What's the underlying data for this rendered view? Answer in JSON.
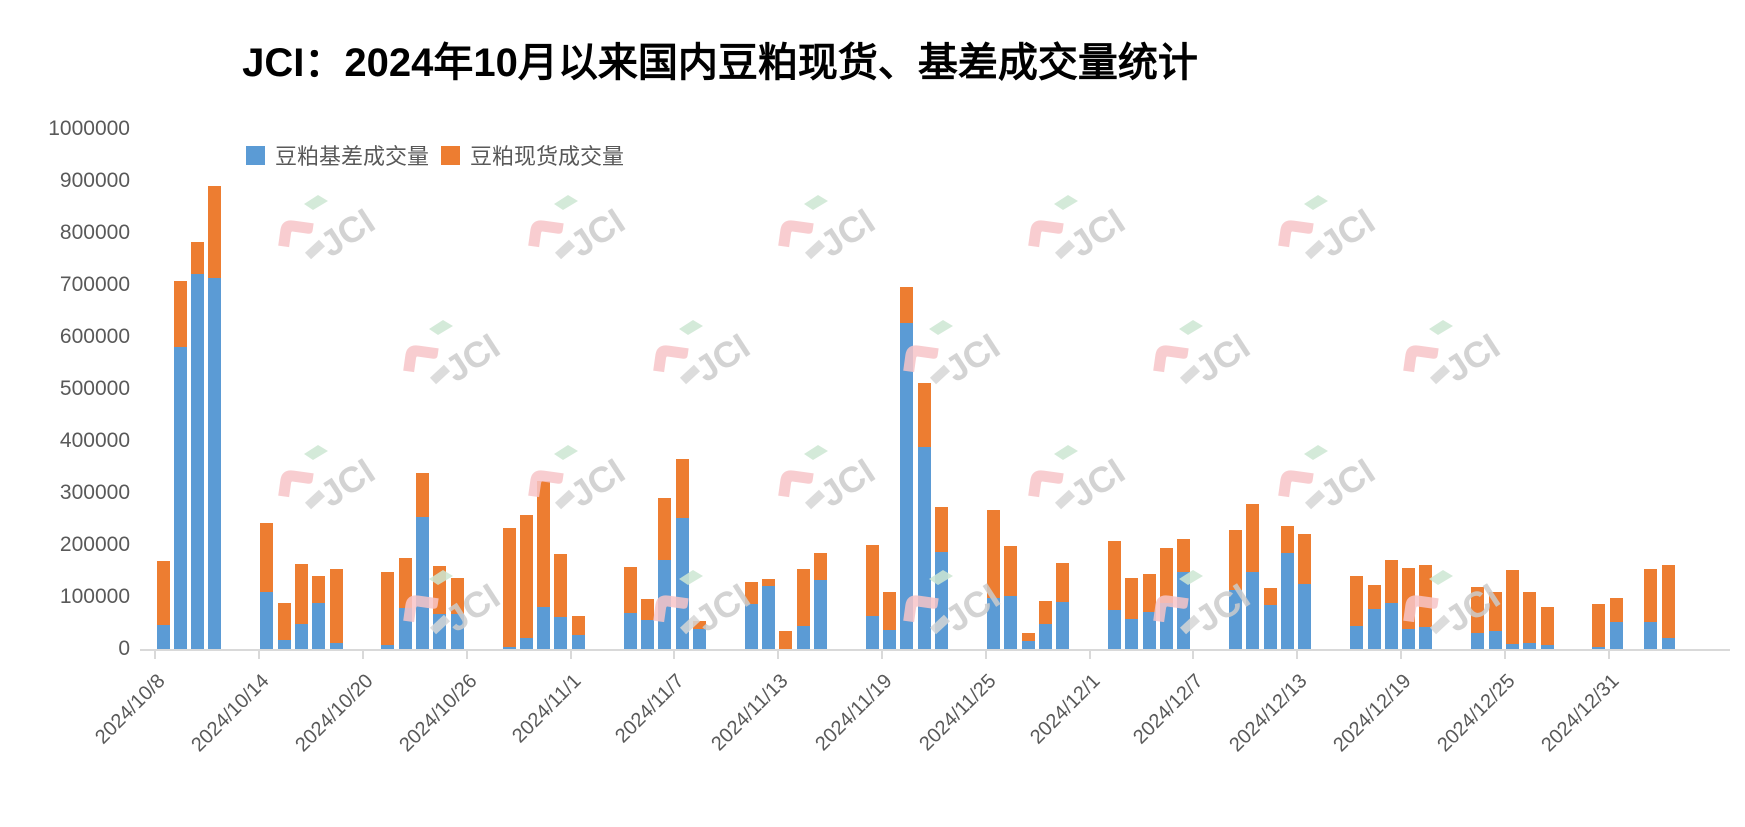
{
  "chart_data": {
    "type": "bar",
    "stacked": true,
    "title": "JCI：2024年10月以来国内豆粕现货、基差成交量统计",
    "legend_position": "top-left",
    "grid": false,
    "ylim": [
      0,
      1000000
    ],
    "y_ticks": [
      0,
      100000,
      200000,
      300000,
      400000,
      500000,
      600000,
      700000,
      800000,
      900000,
      1000000
    ],
    "x_tick_labels": [
      "2024/10/8",
      "2024/10/14",
      "2024/10/20",
      "2024/10/26",
      "2024/11/1",
      "2024/11/7",
      "2024/11/13",
      "2024/11/19",
      "2024/11/25",
      "2024/12/1",
      "2024/12/7",
      "2024/12/13",
      "2024/12/19",
      "2024/12/25",
      "2024/12/31"
    ],
    "series": [
      {
        "name": "豆粕基差成交量",
        "color": "#5B9BD5",
        "key": "basis"
      },
      {
        "name": "豆粕现货成交量",
        "color": "#ED7D31",
        "key": "spot"
      }
    ],
    "bars": [
      {
        "date": "2024/10/8",
        "basis": 46000,
        "spot": 124000
      },
      {
        "date": "2024/10/9",
        "basis": 580000,
        "spot": 128000
      },
      {
        "date": "2024/10/10",
        "basis": 722000,
        "spot": 60000
      },
      {
        "date": "2024/10/11",
        "basis": 713000,
        "spot": 177000
      },
      {
        "date": "2024/10/14",
        "basis": 110000,
        "spot": 132000
      },
      {
        "date": "2024/10/15",
        "basis": 18000,
        "spot": 70000
      },
      {
        "date": "2024/10/16",
        "basis": 49000,
        "spot": 114000
      },
      {
        "date": "2024/10/17",
        "basis": 89000,
        "spot": 52000
      },
      {
        "date": "2024/10/18",
        "basis": 11000,
        "spot": 143000
      },
      {
        "date": "2024/10/21",
        "basis": 7000,
        "spot": 141000
      },
      {
        "date": "2024/10/22",
        "basis": 79000,
        "spot": 96000
      },
      {
        "date": "2024/10/23",
        "basis": 253000,
        "spot": 85000
      },
      {
        "date": "2024/10/24",
        "basis": 67000,
        "spot": 93000
      },
      {
        "date": "2024/10/25",
        "basis": 67000,
        "spot": 69000
      },
      {
        "date": "2024/10/28",
        "basis": 3000,
        "spot": 230000
      },
      {
        "date": "2024/10/29",
        "basis": 22000,
        "spot": 235000
      },
      {
        "date": "2024/10/30",
        "basis": 80000,
        "spot": 244000
      },
      {
        "date": "2024/10/31",
        "basis": 61000,
        "spot": 122000
      },
      {
        "date": "2024/11/1",
        "basis": 27000,
        "spot": 37000
      },
      {
        "date": "2024/11/4",
        "basis": 70000,
        "spot": 88000
      },
      {
        "date": "2024/11/5",
        "basis": 56000,
        "spot": 40000
      },
      {
        "date": "2024/11/6",
        "basis": 172000,
        "spot": 119000
      },
      {
        "date": "2024/11/7",
        "basis": 251000,
        "spot": 114000
      },
      {
        "date": "2024/11/8",
        "basis": 38000,
        "spot": 15000
      },
      {
        "date": "2024/11/11",
        "basis": 87000,
        "spot": 41000
      },
      {
        "date": "2024/11/12",
        "basis": 121000,
        "spot": 13000
      },
      {
        "date": "2024/11/13",
        "basis": 0,
        "spot": 35000
      },
      {
        "date": "2024/11/14",
        "basis": 45000,
        "spot": 109000
      },
      {
        "date": "2024/11/15",
        "basis": 133000,
        "spot": 52000
      },
      {
        "date": "2024/11/18",
        "basis": 63000,
        "spot": 137000
      },
      {
        "date": "2024/11/19",
        "basis": 37000,
        "spot": 73000
      },
      {
        "date": "2024/11/20",
        "basis": 627000,
        "spot": 70000
      },
      {
        "date": "2024/11/21",
        "basis": 389000,
        "spot": 123000
      },
      {
        "date": "2024/11/22",
        "basis": 186000,
        "spot": 88000
      },
      {
        "date": "2024/11/25",
        "basis": 99000,
        "spot": 168000
      },
      {
        "date": "2024/11/26",
        "basis": 102000,
        "spot": 96000
      },
      {
        "date": "2024/11/27",
        "basis": 16000,
        "spot": 15000
      },
      {
        "date": "2024/11/28",
        "basis": 49000,
        "spot": 44000
      },
      {
        "date": "2024/11/29",
        "basis": 90000,
        "spot": 75000
      },
      {
        "date": "2024/12/2",
        "basis": 75000,
        "spot": 133000
      },
      {
        "date": "2024/12/3",
        "basis": 58000,
        "spot": 79000
      },
      {
        "date": "2024/12/4",
        "basis": 71000,
        "spot": 73000
      },
      {
        "date": "2024/12/5",
        "basis": 89000,
        "spot": 105000
      },
      {
        "date": "2024/12/6",
        "basis": 149000,
        "spot": 62000
      },
      {
        "date": "2024/12/9",
        "basis": 113000,
        "spot": 116000
      },
      {
        "date": "2024/12/10",
        "basis": 149000,
        "spot": 130000
      },
      {
        "date": "2024/12/11",
        "basis": 85000,
        "spot": 33000
      },
      {
        "date": "2024/12/12",
        "basis": 185000,
        "spot": 52000
      },
      {
        "date": "2024/12/13",
        "basis": 125000,
        "spot": 97000
      },
      {
        "date": "2024/12/16",
        "basis": 44000,
        "spot": 96000
      },
      {
        "date": "2024/12/17",
        "basis": 76000,
        "spot": 48000
      },
      {
        "date": "2024/12/18",
        "basis": 88000,
        "spot": 84000
      },
      {
        "date": "2024/12/19",
        "basis": 38000,
        "spot": 117000
      },
      {
        "date": "2024/12/20",
        "basis": 43000,
        "spot": 119000
      },
      {
        "date": "2024/12/23",
        "basis": 31000,
        "spot": 89000
      },
      {
        "date": "2024/12/24",
        "basis": 35000,
        "spot": 74000
      },
      {
        "date": "2024/12/25",
        "basis": 9000,
        "spot": 142000
      },
      {
        "date": "2024/12/26",
        "basis": 11000,
        "spot": 98000
      },
      {
        "date": "2024/12/27",
        "basis": 7000,
        "spot": 73000
      },
      {
        "date": "2024/12/30",
        "basis": 4000,
        "spot": 83000
      },
      {
        "date": "2024/12/31",
        "basis": 52000,
        "spot": 47000
      },
      {
        "date": "2025/1/2",
        "basis": 52000,
        "spot": 102000
      },
      {
        "date": "2025/1/3",
        "basis": 21000,
        "spot": 141000
      }
    ],
    "colors": {
      "basis": "#5B9BD5",
      "spot": "#ED7D31",
      "axis_line": "#d9d9d9",
      "tick_text": "#595959",
      "title_text": "#000000"
    },
    "watermark": {
      "text": "JCI",
      "text_color": "#cccccc",
      "mark_pink": "#f7c5c8",
      "mark_green": "#cde7d3"
    }
  }
}
